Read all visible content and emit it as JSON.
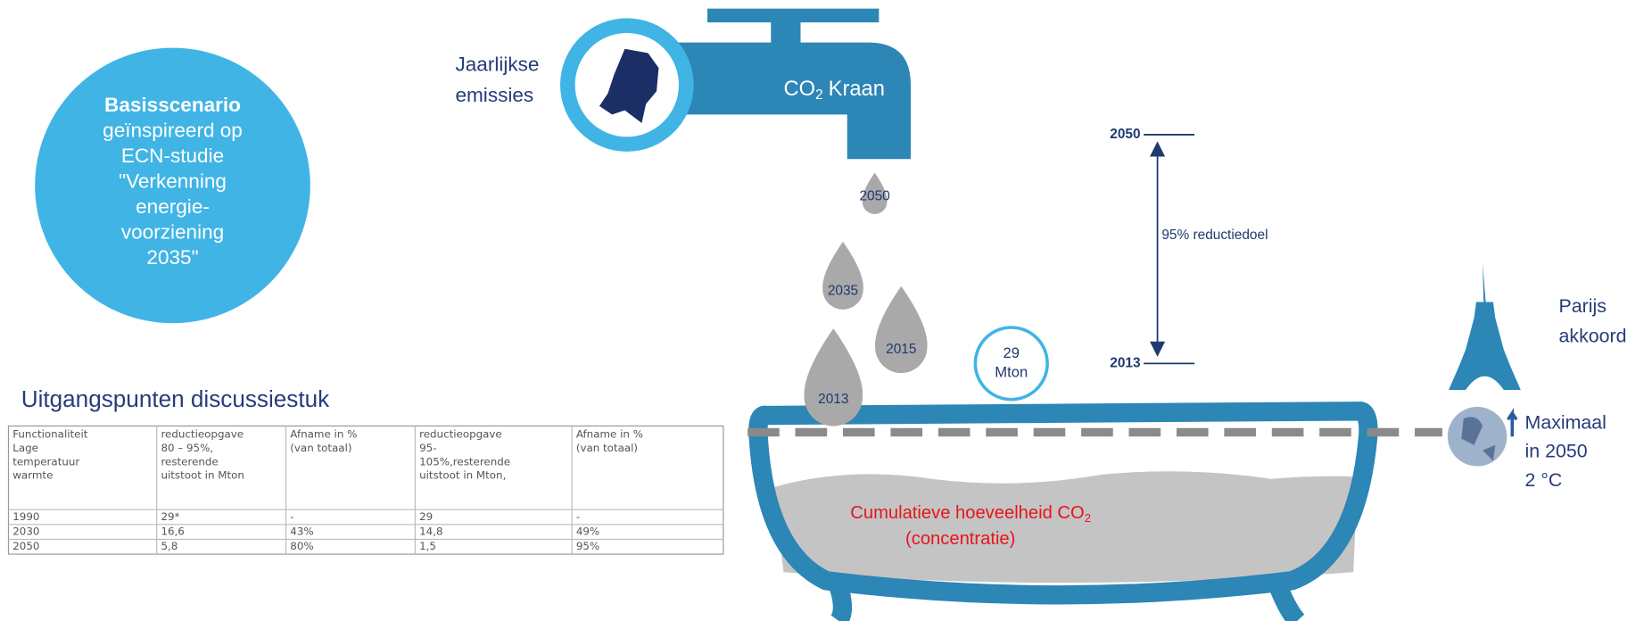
{
  "scenario": {
    "title": "Basisscenario",
    "lines": [
      "geïnspireerd op",
      "ECN-studie",
      "\"Verkenning",
      "energie-",
      "voorziening",
      "2035\""
    ]
  },
  "tap": {
    "label_lines": [
      "Jaarlijkse",
      "emissies"
    ],
    "co": "CO",
    "sub": "2",
    "kraan": "Kraan"
  },
  "drops": [
    "2050",
    "2035",
    "2015",
    "2013"
  ],
  "bubble": [
    "29",
    "Mton"
  ],
  "timeline": {
    "top": "2050",
    "bottom": "2013",
    "label": "95% reductiedoel"
  },
  "paris": [
    "Parijs",
    "akkoord"
  ],
  "max": [
    "Maximaal",
    "in 2050",
    " 2 °C"
  ],
  "bath": {
    "label": "Cumulatieve hoeveelheid CO",
    "sub": "2",
    "label2": "(concentratie)"
  },
  "table": {
    "title": "Uitgangspunten discussiestuk",
    "header": [
      [
        "Functionaliteit",
        "Lage",
        "temperatuur",
        "warmte"
      ],
      [
        "reductieopgave",
        "80 – 95%,",
        "resterende",
        "uitstoot  in Mton"
      ],
      [
        "Afname in %",
        "(van totaal)"
      ],
      [
        "reductieopgave",
        "95-",
        "105%,resterende",
        "uitstoot  in Mton,"
      ],
      [
        "Afname in %",
        "(van totaal)"
      ]
    ],
    "rows": [
      [
        "1990",
        "29*",
        "-",
        "29",
        "-"
      ],
      [
        "2030",
        "16,6",
        "43%",
        "14,8",
        "49%"
      ],
      [
        "2050",
        "5,8",
        "80%",
        "1,5",
        "95%"
      ]
    ]
  }
}
